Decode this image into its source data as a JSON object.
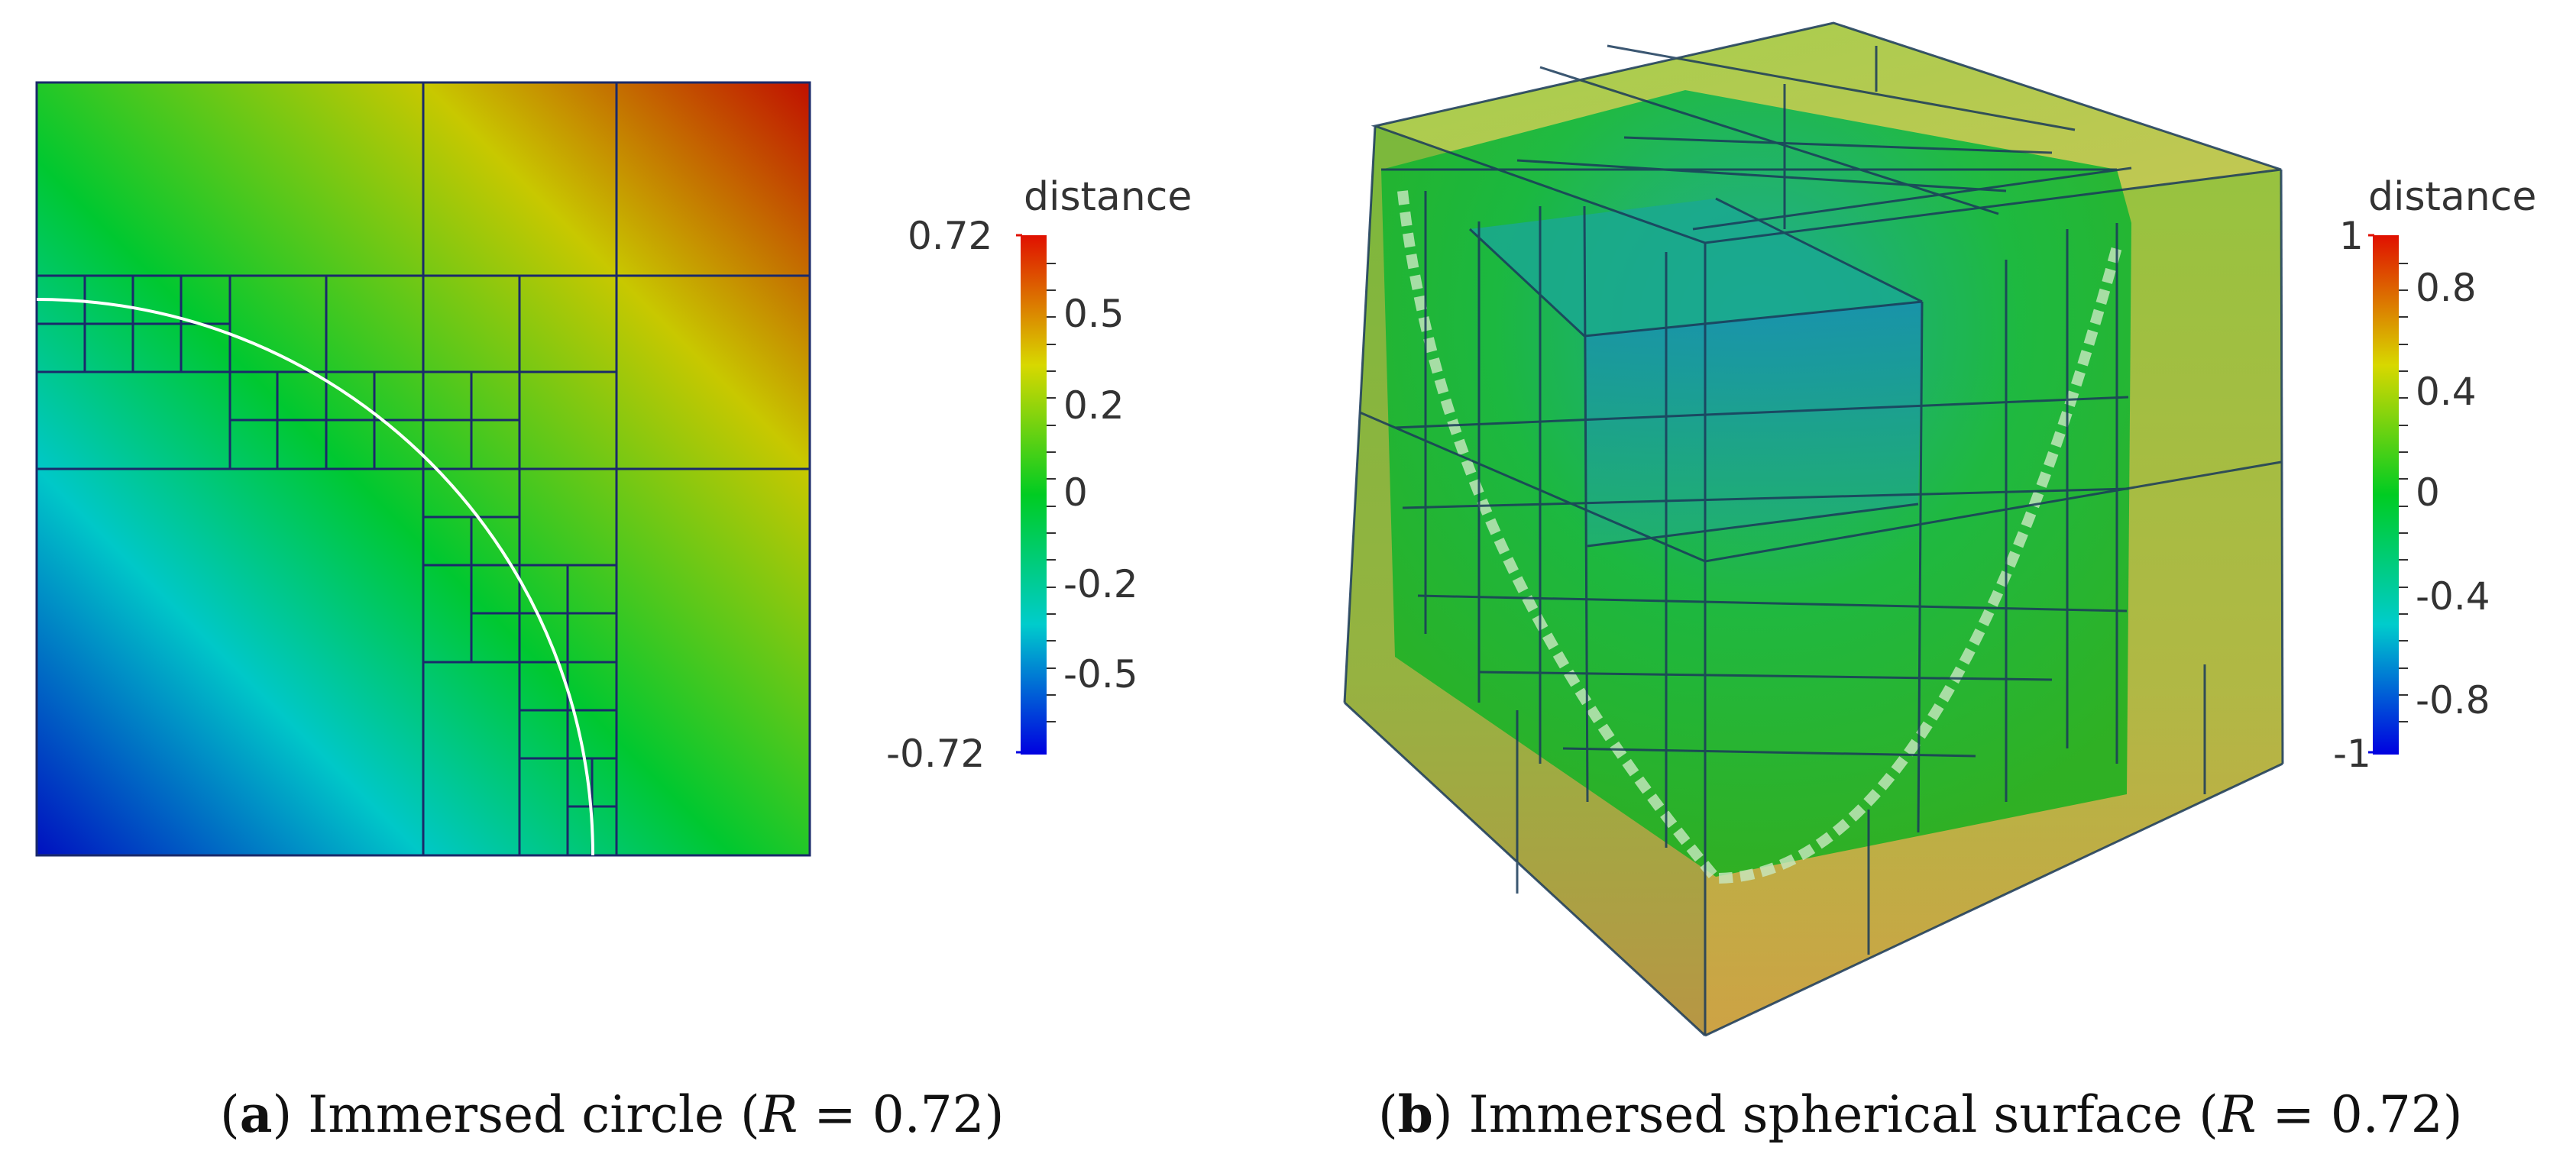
{
  "figure": {
    "panel_a": {
      "colorbar": {
        "title": "distance",
        "max_label": "0.72",
        "min_label": "-0.72",
        "ticks": [
          "0.5",
          "0.2",
          "0",
          "-0.2",
          "-0.5"
        ]
      },
      "caption": {
        "letter": "a",
        "text_before": " Immersed circle (",
        "var": "R",
        "text_after": " = 0.72)"
      }
    },
    "panel_b": {
      "colorbar": {
        "title": "distance",
        "max_label": "1",
        "min_label": "-1",
        "ticks": [
          "0.8",
          "0.4",
          "0",
          "-0.4",
          "-0.8"
        ]
      },
      "caption": {
        "letter": "b",
        "text_before": " Immersed spherical surface (",
        "var": "R",
        "text_after": " = 0.72)"
      }
    },
    "colors": {
      "cmap": [
        "#0000dd",
        "#00cccc",
        "#00cc22",
        "#cccc00",
        "#dd1100"
      ],
      "grid_line": "#1a2a6a",
      "curve": "#ffffff"
    }
  }
}
